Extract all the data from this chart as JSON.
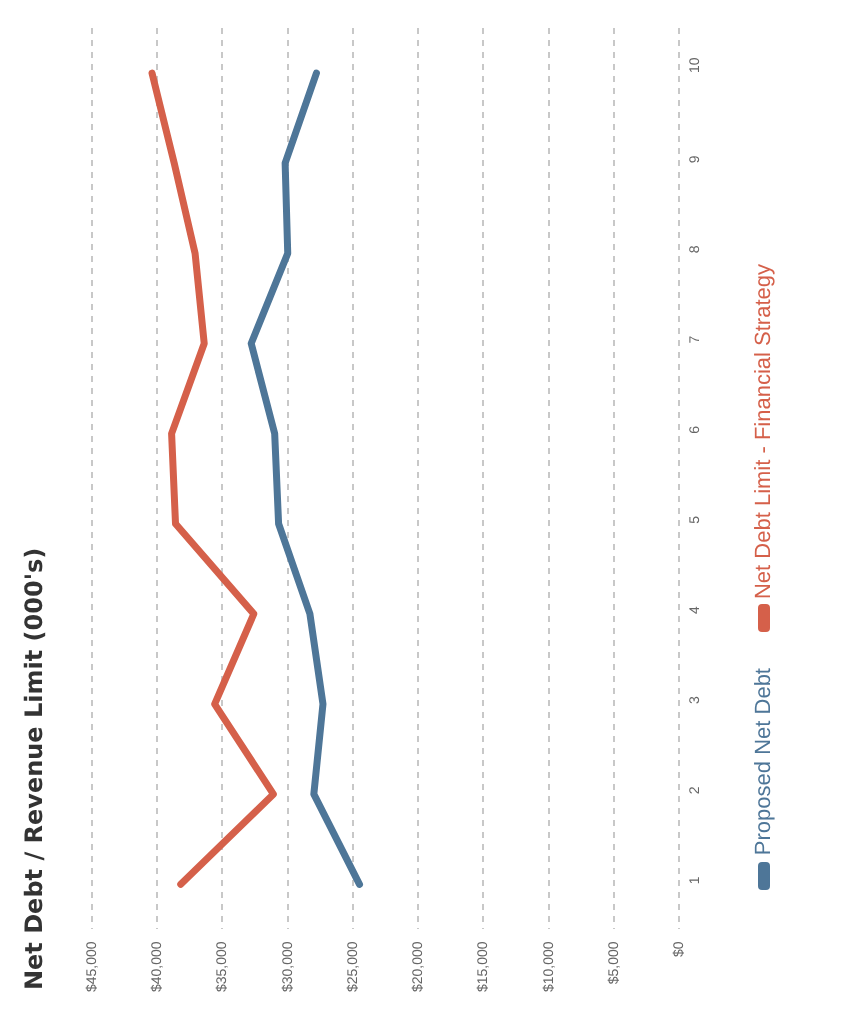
{
  "chart_data": {
    "type": "line",
    "title": "Net Debt / Revenue Limit (000's)",
    "orientation": "horizontal",
    "categories": [
      "10",
      "9",
      "8",
      "7",
      "6",
      "5",
      "4",
      "3",
      "2",
      "1"
    ],
    "series": [
      {
        "name": "Proposed Net Debt",
        "color": "#4e7698",
        "values": [
          27800,
          30200,
          30000,
          32800,
          31000,
          30700,
          28300,
          27300,
          28000,
          24500
        ]
      },
      {
        "name": "Net Debt Limit - Financial Strategy",
        "color": "#d5604a",
        "values": [
          40400,
          38700,
          37100,
          36400,
          38900,
          38600,
          32600,
          35600,
          31100,
          38200
        ]
      }
    ],
    "xlim": [
      45000,
      0
    ],
    "xticks": [
      {
        "value": 45000,
        "label": "$45,000"
      },
      {
        "value": 40000,
        "label": "$40,000"
      },
      {
        "value": 35000,
        "label": "$35,000"
      },
      {
        "value": 30000,
        "label": "$30,000"
      },
      {
        "value": 25000,
        "label": "$25,000"
      },
      {
        "value": 20000,
        "label": "$20,000"
      },
      {
        "value": 15000,
        "label": "$15,000"
      },
      {
        "value": 10000,
        "label": "$10,000"
      },
      {
        "value": 5000,
        "label": "$5,000"
      },
      {
        "value": 0,
        "label": "$0"
      }
    ],
    "grid": "x",
    "legend": "right",
    "marker": "none",
    "line_style": "solid"
  }
}
